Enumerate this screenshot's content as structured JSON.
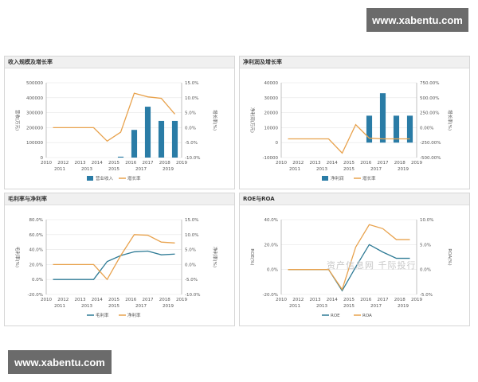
{
  "watermark_top": "www.xabentu.com",
  "watermark_bottom": "www.xabentu.com",
  "overlay_watermark": "资产信息网  千际投行",
  "colors": {
    "bar": "#2a7ca6",
    "line_orange": "#e8a24d",
    "line_teal": "#2d7a95",
    "grid": "#e6e6e6",
    "axis_text": "#555555"
  },
  "chart_data": [
    {
      "type": "bar",
      "title": "收入规模及增长率",
      "ylabel": "营收(万元)",
      "y2label": "增长率(%)",
      "x_top": [
        "2010",
        "2012",
        "2013",
        "2014",
        "2015",
        "2016",
        "2017",
        "2018",
        "2019"
      ],
      "x_bottom": [
        "2011",
        "2013",
        "2015",
        "2017",
        "2019"
      ],
      "ylim": [
        0,
        500000
      ],
      "yticks": [
        "500000",
        "400000",
        "300000",
        "200000",
        "100000",
        "0"
      ],
      "y2lim": [
        -10,
        15
      ],
      "y2ticks": [
        "15.0%",
        "10.0%",
        "5.0%",
        "0.0%",
        "-5.0%",
        "-10.0%"
      ],
      "categories": [
        "2010",
        "2011",
        "2012",
        "2013",
        "2014",
        "2015",
        "2016",
        "2017",
        "2018",
        "2019"
      ],
      "series": [
        {
          "name": "营业收入",
          "kind": "bar",
          "values": [
            0,
            0,
            0,
            0,
            0,
            6000,
            185000,
            340000,
            245000,
            245000
          ]
        },
        {
          "name": "增长率",
          "kind": "line",
          "axis": "right",
          "values": [
            0,
            0,
            0,
            0,
            -4.5,
            -1.5,
            11.5,
            10.3,
            9.8,
            4.5
          ]
        }
      ]
    },
    {
      "type": "bar",
      "title": "净利润及增长率",
      "ylabel": "净利润(万元)",
      "y2label": "增长率(%)",
      "x_top": [
        "2010",
        "2012",
        "2013",
        "2014",
        "2015",
        "2016",
        "2017",
        "2018",
        "2019"
      ],
      "x_bottom": [
        "2011",
        "2013",
        "2015",
        "2017",
        "2019"
      ],
      "ylim": [
        -10000,
        40000
      ],
      "yticks": [
        "40000",
        "30000",
        "20000",
        "10000",
        "0",
        "-10000"
      ],
      "y2lim": [
        -250,
        750
      ],
      "y2ticks": [
        "750.00%",
        "500.00%",
        "250.00%",
        "0.00%",
        "-250.00%",
        "-500.00%"
      ],
      "categories": [
        "2010",
        "2011",
        "2012",
        "2013",
        "2014",
        "2015",
        "2016",
        "2017",
        "2018",
        "2019"
      ],
      "series": [
        {
          "name": "净利润",
          "kind": "bar",
          "values": [
            0,
            0,
            0,
            0,
            0,
            0,
            18000,
            33000,
            18000,
            18000
          ]
        },
        {
          "name": "增长率",
          "kind": "line",
          "axis": "right",
          "values": [
            0,
            0,
            0,
            0,
            -190,
            190,
            10,
            0,
            0,
            0
          ]
        }
      ]
    },
    {
      "type": "line",
      "title": "毛利率与净利率",
      "ylabel": "毛利率(%)",
      "y2label": "净利率(%)",
      "x_top": [
        "2010",
        "2012",
        "2013",
        "2014",
        "2015",
        "2016",
        "2017",
        "2018",
        "2019"
      ],
      "x_bottom": [
        "2011",
        "2013",
        "2015",
        "2017",
        "2019"
      ],
      "ylim": [
        -20,
        80
      ],
      "yticks": [
        "80.0%",
        "60.0%",
        "40.0%",
        "20.0%",
        "0.0%",
        "-20.0%"
      ],
      "y2lim": [
        -10,
        15
      ],
      "y2ticks": [
        "15.0%",
        "10.0%",
        "5.0%",
        "0.0%",
        "-5.0%",
        "-10.0%"
      ],
      "categories": [
        "2010",
        "2011",
        "2012",
        "2013",
        "2014",
        "2015",
        "2016",
        "2017",
        "2018",
        "2019"
      ],
      "series": [
        {
          "name": "毛利率",
          "kind": "line",
          "axis": "left",
          "color": "teal",
          "values": [
            0,
            0,
            0,
            0,
            24,
            32,
            37,
            38,
            33,
            34
          ]
        },
        {
          "name": "净利率",
          "kind": "line",
          "axis": "right",
          "color": "orange",
          "values": [
            0,
            0,
            0,
            0,
            -5,
            3,
            10,
            9.8,
            7.5,
            7.2
          ]
        }
      ]
    },
    {
      "type": "line",
      "title": "ROE与ROA",
      "ylabel": "ROE(%)",
      "y2label": "ROA(%)",
      "x_top": [
        "2010",
        "2012",
        "2013",
        "2014",
        "2015",
        "2016",
        "2017",
        "2018",
        "2019"
      ],
      "x_bottom": [
        "2011",
        "2013",
        "2015",
        "2017",
        "2019"
      ],
      "ylim": [
        -20,
        40
      ],
      "yticks": [
        "40.0%",
        "20.0%",
        "0.0%",
        "-20.0%"
      ],
      "y2lim": [
        -5,
        10
      ],
      "y2ticks": [
        "10.0%",
        "5.0%",
        "0.0%",
        "-5.0%"
      ],
      "categories": [
        "2010",
        "2011",
        "2012",
        "2013",
        "2014",
        "2015",
        "2016",
        "2017",
        "2018",
        "2019"
      ],
      "series": [
        {
          "name": "ROE",
          "kind": "line",
          "axis": "left",
          "color": "teal",
          "values": [
            0,
            0,
            0,
            0,
            -17,
            2,
            20,
            14,
            9,
            9
          ]
        },
        {
          "name": "ROA",
          "kind": "line",
          "axis": "right",
          "color": "orange",
          "values": [
            0,
            0,
            0,
            0,
            -4,
            4.5,
            9,
            8.2,
            6,
            6
          ]
        }
      ]
    }
  ]
}
